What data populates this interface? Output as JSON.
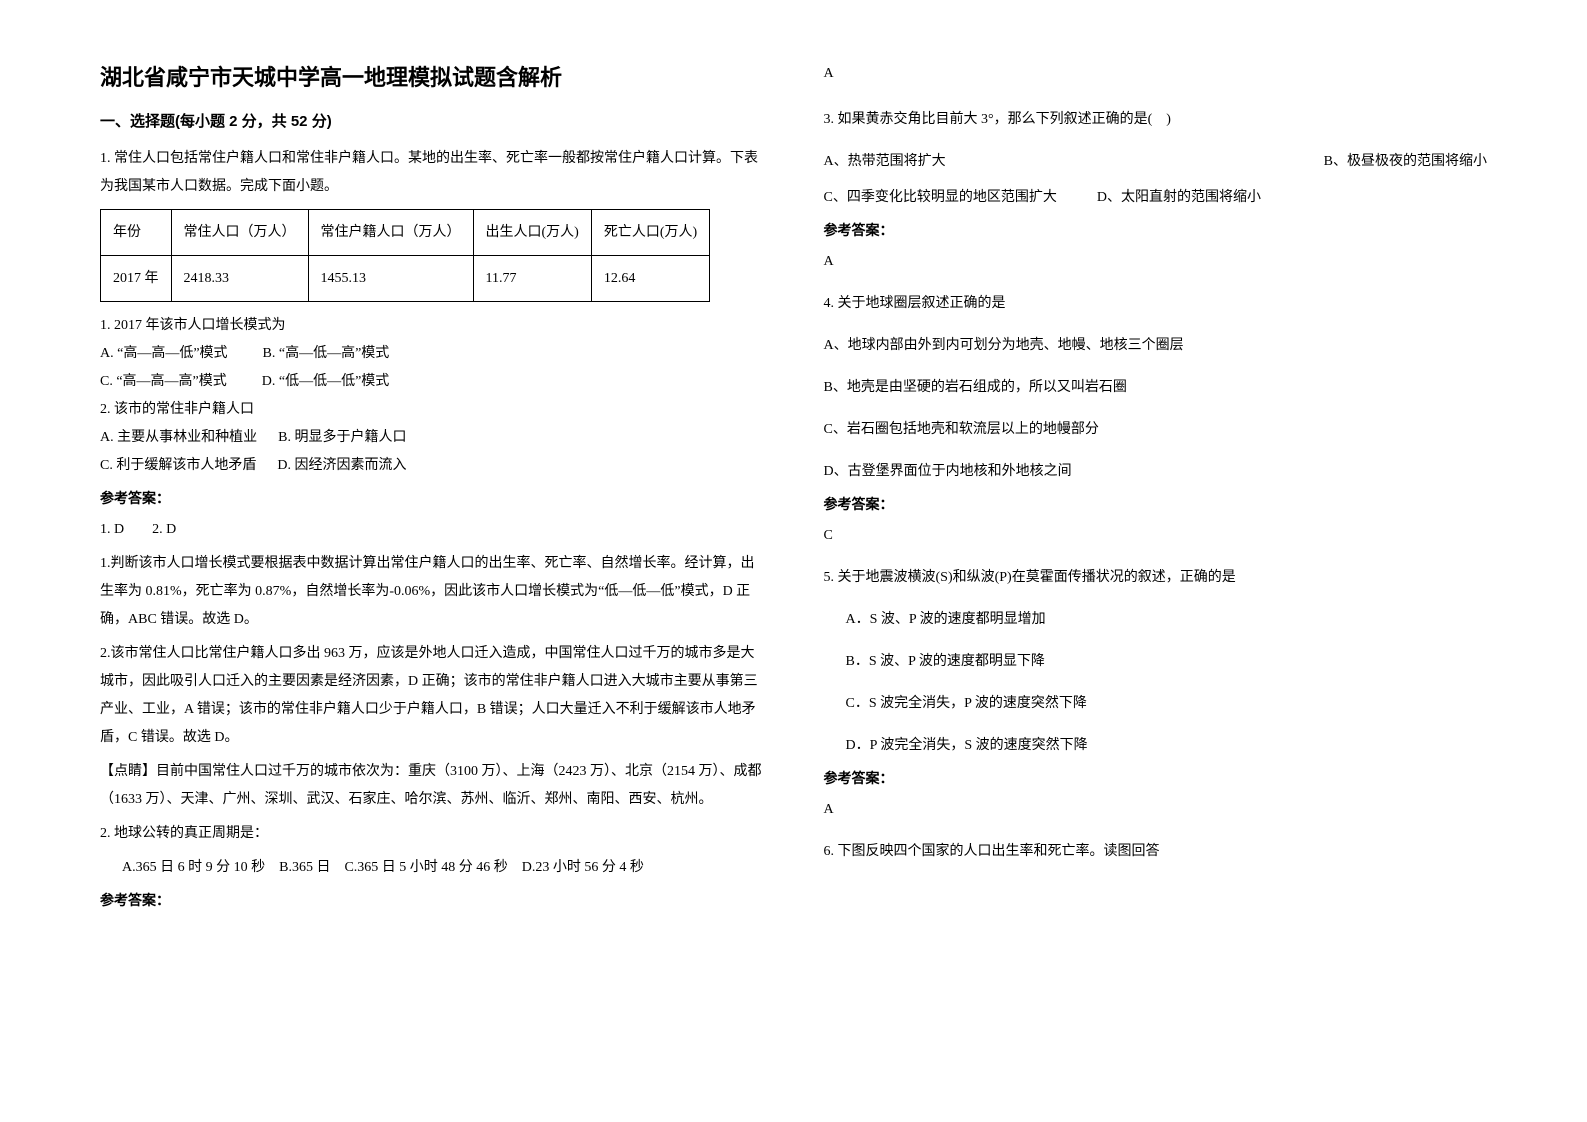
{
  "title": "湖北省咸宁市天城中学高一地理模拟试题含解析",
  "section1": {
    "header": "一、选择题(每小题 2 分，共 52 分)",
    "q1": {
      "stem1": "1. 常住人口包括常住户籍人口和常住非户籍人口。某地的出生率、死亡率一般都按常住户籍人口计算。下表为我国某市人口数据。完成下面小题。",
      "table": {
        "headers": [
          "年份",
          "常住人口（万人）",
          "常住户籍人口（万人）",
          "出生人口(万人)",
          "死亡人口(万人)"
        ],
        "row": [
          "2017 年",
          "2418.33",
          "1455.13",
          "11.77",
          "12.64"
        ]
      },
      "sub1": "1. 2017 年该市人口增长模式为",
      "sub1_opts": {
        "a": "A. “高—高—低”模式",
        "b": "B. “高—低—高”模式",
        "c": "C. “高—高—高”模式",
        "d": "D. “低—低—低”模式"
      },
      "sub2": "2. 该市的常住非户籍人口",
      "sub2_opts": {
        "a": "A. 主要从事林业和种植业",
        "b": "B. 明显多于户籍人口",
        "c": "C. 利于缓解该市人地矛盾",
        "d": "D. 因经济因素而流入"
      },
      "answer_label": "参考答案：",
      "answer_line": "1. D  2. D",
      "explain1": "1.判断该市人口增长模式要根据表中数据计算出常住户籍人口的出生率、死亡率、自然增长率。经计算，出生率为 0.81%，死亡率为 0.87%，自然增长率为-0.06%，因此该市人口增长模式为“低—低—低”模式，D 正确，ABC 错误。故选 D。",
      "explain2": "2.该市常住人口比常住户籍人口多出 963 万，应该是外地人口迁入造成，中国常住人口过千万的城市多是大城市，因此吸引人口迁入的主要因素是经济因素，D 正确；该市的常住非户籍人口进入大城市主要从事第三产业、工业，A 错误；该市的常住非户籍人口少于户籍人口，B 错误；人口大量迁入不利于缓解该市人地矛盾，C 错误。故选 D。",
      "tip": "【点睛】目前中国常住人口过千万的城市依次为：重庆（3100 万）、上海（2423 万）、北京（2154 万）、成都（1633 万）、天津、广州、深圳、武汉、石家庄、哈尔滨、苏州、临沂、郑州、南阳、西安、杭州。"
    },
    "q2": {
      "stem": "2. 地球公转的真正周期是：",
      "opts": "A.365 日 6 时 9 分 10 秒 B.365 日 C.365 日 5 小时 48 分 46 秒 D.23 小时 56 分 4 秒",
      "answer_label": "参考答案：",
      "answer": "A"
    },
    "q3": {
      "stem": "3. 如果黄赤交角比目前大 3°，那么下列叙述正确的是( )",
      "optA": "A、热带范围将扩大",
      "optB": "B、极昼极夜的范围将缩小",
      "optC": "C、四季变化比较明显的地区范围扩大",
      "optD": "D、太阳直射的范围将缩小",
      "answer_label": "参考答案：",
      "answer": "A"
    },
    "q4": {
      "stem": "4. 关于地球圈层叙述正确的是",
      "optA": "A、地球内部由外到内可划分为地壳、地幔、地核三个圈层",
      "optB": "B、地壳是由坚硬的岩石组成的，所以又叫岩石圈",
      "optC": "C、岩石圈包括地壳和软流层以上的地幔部分",
      "optD": "D、古登堡界面位于内地核和外地核之间",
      "answer_label": "参考答案：",
      "answer": "C"
    },
    "q5": {
      "stem": "5. 关于地震波横波(S)和纵波(P)在莫霍面传播状况的叙述，正确的是",
      "optA": "A．S 波、P 波的速度都明显增加",
      "optB": "B．S 波、P 波的速度都明显下降",
      "optC": "C．S 波完全消失，P 波的速度突然下降",
      "optD": "D．P 波完全消失，S 波的速度突然下降",
      "answer_label": "参考答案：",
      "answer": "A"
    },
    "q6": {
      "stem": "6. 下图反映四个国家的人口出生率和死亡率。读图回答"
    }
  }
}
